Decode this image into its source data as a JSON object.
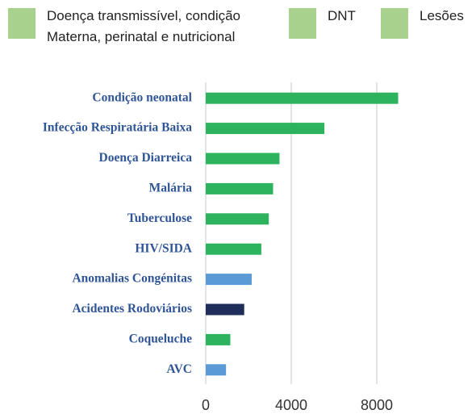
{
  "chart_data": {
    "type": "bar",
    "orientation": "horizontal",
    "legend": [
      {
        "name": "Doença transmissível, condição\nMaterna, perinatal e nutricional",
        "color": "#a9d18e"
      },
      {
        "name": "DNT",
        "color": "#a9d18e"
      },
      {
        "name": "Lesões",
        "color": "#a9d18e"
      }
    ],
    "categories": [
      "Condição neonatal",
      "Infecção Respiratária Baixa",
      "Doença Diarreica",
      "Malária",
      "Tuberculose",
      "HIV/SIDA",
      "Anomalias Congénitas",
      "Acidentes Rodoviários",
      "Coqueluche",
      "AVC"
    ],
    "values": [
      9000,
      5550,
      3450,
      3150,
      2950,
      2600,
      2150,
      1800,
      1150,
      950
    ],
    "colors": [
      "#2db35d",
      "#2db35d",
      "#2db35d",
      "#2db35d",
      "#2db35d",
      "#2db35d",
      "#5b9bd5",
      "#1f2d5a",
      "#2db35d",
      "#5b9bd5"
    ],
    "xlim": [
      0,
      9600
    ],
    "xticks": [
      0,
      4000,
      8000
    ],
    "grid": true
  }
}
